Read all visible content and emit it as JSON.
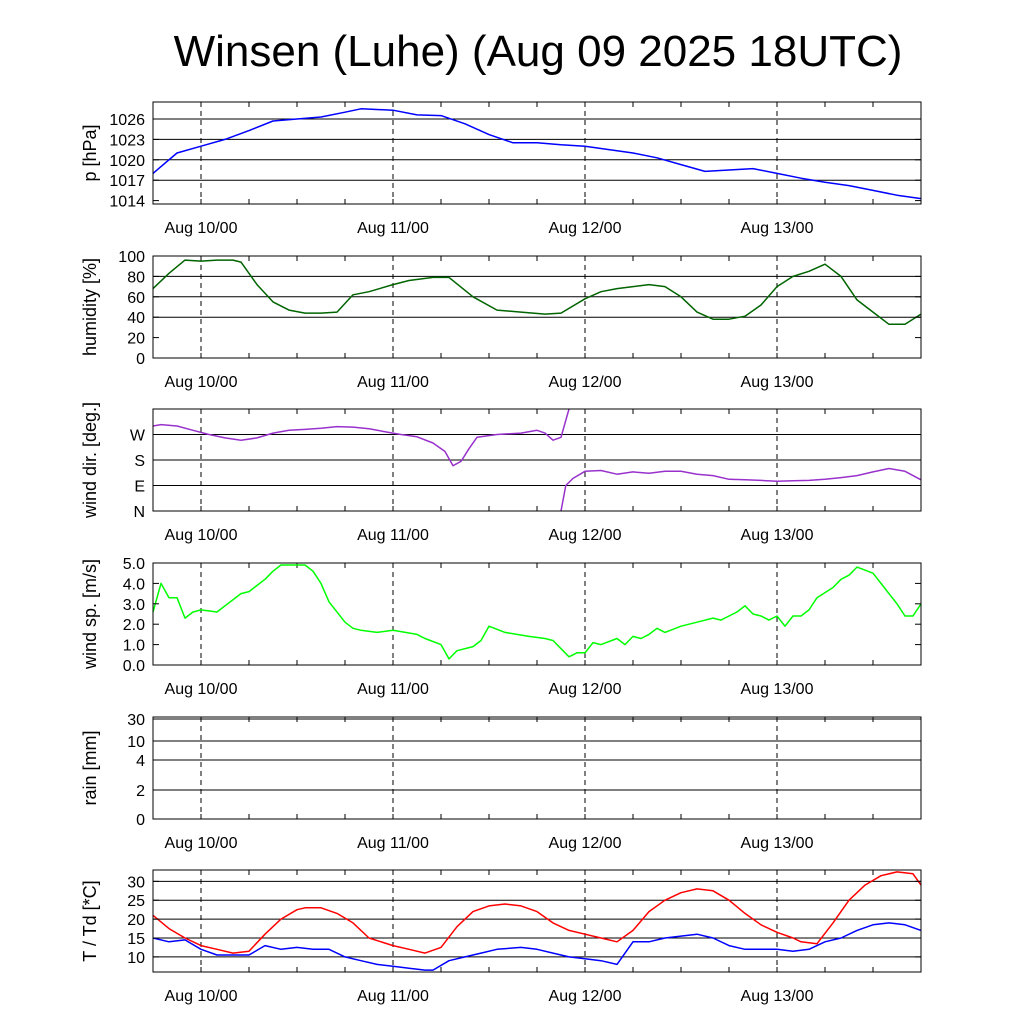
{
  "chart_data": {
    "type": "line",
    "title": "Winsen (Luhe) (Aug 09 2025 18UTC)",
    "x_ticks": [
      "Aug 10/00",
      "Aug 11/00",
      "Aug 12/00",
      "Aug 13/00"
    ],
    "x_tick_hours": [
      6,
      30,
      54,
      78
    ],
    "x_range_hours": [
      0,
      96
    ],
    "colors": {
      "pressure": "#0000ff",
      "humidity": "#006400",
      "wind_dir": "#9932cc",
      "wind_speed": "#00ff00",
      "rain": "#0000ff",
      "temperature": "#ff0000",
      "dewpoint": "#0000ff"
    },
    "panels": [
      {
        "id": "pressure",
        "ylabel": "p [hPa]",
        "ylim": [
          1013.5,
          1028.5
        ],
        "yticks": [
          1014,
          1017,
          1020,
          1023,
          1026
        ],
        "ytick_labels": [
          "1014",
          "1017",
          "1020",
          "1023",
          "1026"
        ],
        "grid": [
          1017,
          1020,
          1023,
          1026
        ],
        "series": [
          {
            "name": "pressure",
            "color_key": "pressure",
            "x": [
              0,
              1,
              3,
              6,
              9,
              12,
              15,
              18,
              21,
              24,
              26,
              30,
              33,
              36,
              39,
              42,
              45,
              48,
              51,
              54,
              57,
              60,
              63,
              66,
              69,
              72,
              75,
              78,
              81,
              84,
              87,
              90,
              93,
              96
            ],
            "y": [
              1018,
              1019,
              1021,
              1022,
              1023,
              1024.3,
              1025.7,
              1026,
              1026.3,
              1027,
              1027.5,
              1027.3,
              1026.6,
              1026.5,
              1025.3,
              1023.7,
              1022.5,
              1022.5,
              1022.2,
              1022,
              1021.5,
              1021,
              1020.3,
              1019.3,
              1018.3,
              1018.5,
              1018.7,
              1018,
              1017.3,
              1016.7,
              1016.2,
              1015.5,
              1014.8,
              1014.3
            ]
          }
        ]
      },
      {
        "id": "humidity",
        "ylabel": "humidity [%]",
        "ylim": [
          0,
          100
        ],
        "yticks": [
          0,
          20,
          40,
          60,
          80,
          100
        ],
        "ytick_labels": [
          "0",
          "20",
          "40",
          "60",
          "80",
          "100"
        ],
        "grid": [
          40,
          60,
          80
        ],
        "series": [
          {
            "name": "humidity",
            "color_key": "humidity",
            "x": [
              0,
              2,
              4,
              6,
              8,
              10,
              11,
              13,
              15,
              17,
              19,
              21,
              23,
              25,
              27,
              30,
              32,
              35,
              37,
              40,
              43,
              46,
              49,
              51,
              54,
              56,
              58,
              60,
              62,
              64,
              66,
              68,
              70,
              72,
              74,
              76,
              78,
              80,
              82,
              84,
              86,
              88,
              90,
              92,
              94,
              96
            ],
            "y": [
              68,
              83,
              96,
              95,
              96,
              96,
              94,
              72,
              55,
              47,
              44,
              44,
              45,
              62,
              65,
              72,
              76,
              79,
              79,
              60,
              47,
              45,
              43,
              44,
              58,
              65,
              68,
              70,
              72,
              70,
              60,
              45,
              38,
              38,
              41,
              52,
              70,
              80,
              85,
              92,
              80,
              57,
              45,
              33,
              33,
              43
            ]
          }
        ]
      },
      {
        "id": "wind_dir",
        "ylabel": "wind dir. [deg.]",
        "ylim": [
          0,
          360
        ],
        "yticks": [
          0,
          90,
          180,
          270
        ],
        "ytick_labels": [
          "N",
          "E",
          "S",
          "W"
        ],
        "grid": [
          90,
          180,
          270
        ],
        "series": [
          {
            "name": "wind_dir_a",
            "color_key": "wind_dir",
            "x": [
              0,
              1,
              3,
              5,
              7,
              9,
              11,
              13,
              15,
              17,
              19,
              21,
              23,
              25,
              27,
              29,
              31,
              33,
              35,
              36.5,
              37.5,
              38.5,
              39.5,
              40.5,
              43,
              46,
              48,
              49,
              50,
              51,
              52
            ],
            "y": [
              300,
              305,
              300,
              285,
              270,
              258,
              250,
              258,
              275,
              285,
              288,
              292,
              298,
              296,
              290,
              280,
              270,
              262,
              240,
              210,
              160,
              175,
              220,
              260,
              270,
              275,
              285,
              275,
              250,
              260,
              360
            ]
          },
          {
            "name": "wind_dir_b",
            "color_key": "wind_dir",
            "x": [
              51,
              51.6,
              52.5,
              54,
              56,
              58,
              60,
              62,
              64,
              66,
              68,
              70,
              72,
              74,
              76,
              78,
              80,
              82,
              84,
              86,
              88,
              90,
              92,
              94,
              96
            ],
            "y": [
              0,
              90,
              115,
              140,
              143,
              130,
              138,
              133,
              140,
              140,
              130,
              125,
              112,
              110,
              108,
              105,
              107,
              108,
              112,
              118,
              125,
              138,
              150,
              140,
              110
            ]
          }
        ]
      },
      {
        "id": "wind_speed",
        "ylabel": "wind sp. [m/s]",
        "ylim": [
          0,
          5
        ],
        "yticks": [
          0,
          1,
          2,
          3,
          4,
          5
        ],
        "ytick_labels": [
          "0.0",
          "1.0",
          "2.0",
          "3.0",
          "4.0",
          "5.0"
        ],
        "grid": [],
        "series": [
          {
            "name": "wind_speed",
            "color_key": "wind_speed",
            "x": [
              0,
              1,
              2,
              3,
              4,
              5,
              6,
              8,
              9,
              11,
              12,
              14,
              15,
              16,
              17,
              18,
              19,
              20,
              21,
              22,
              24,
              25,
              26,
              28,
              30,
              33,
              34,
              36,
              37,
              38,
              40,
              41,
              42,
              44,
              47,
              49,
              50,
              51,
              52,
              53,
              54,
              55,
              56,
              58,
              59,
              60,
              61,
              62,
              63,
              64,
              66,
              68,
              70,
              71,
              72,
              73,
              74,
              75,
              76,
              77,
              78,
              79,
              80,
              81,
              82,
              83,
              85,
              86,
              87,
              88,
              90,
              91,
              92,
              93,
              94,
              95,
              96
            ],
            "y": [
              2.6,
              4,
              3.3,
              3.3,
              2.3,
              2.6,
              2.7,
              2.6,
              2.9,
              3.5,
              3.6,
              4.2,
              4.6,
              4.9,
              4.9,
              4.9,
              4.9,
              4.6,
              4,
              3.1,
              2.1,
              1.8,
              1.7,
              1.6,
              1.7,
              1.5,
              1.3,
              1,
              0.3,
              0.7,
              0.9,
              1.2,
              1.9,
              1.6,
              1.4,
              1.3,
              1.2,
              0.8,
              0.4,
              0.6,
              0.6,
              1.1,
              1,
              1.3,
              1,
              1.4,
              1.3,
              1.5,
              1.8,
              1.6,
              1.9,
              2.1,
              2.3,
              2.2,
              2.4,
              2.6,
              2.9,
              2.5,
              2.4,
              2.2,
              2.4,
              1.9,
              2.4,
              2.4,
              2.7,
              3.3,
              3.8,
              4.2,
              4.4,
              4.8,
              4.5,
              4,
              3.5,
              3,
              2.4,
              2.4,
              3
            ]
          }
        ]
      },
      {
        "id": "rain",
        "ylabel": "rain [mm]",
        "yticks": [
          0,
          2,
          4,
          10,
          30
        ],
        "ytick_labels": [
          "0",
          "2",
          "4",
          "10",
          "30"
        ],
        "grid": [
          2,
          4,
          10,
          30
        ],
        "series": []
      },
      {
        "id": "temperature",
        "ylabel": "T / Td [*C]",
        "ylim": [
          6,
          33
        ],
        "yticks": [
          10,
          15,
          20,
          25,
          30
        ],
        "ytick_labels": [
          "10",
          "15",
          "20",
          "25",
          "30"
        ],
        "grid": [
          10,
          15,
          20,
          25,
          30
        ],
        "series": [
          {
            "name": "temperature",
            "color_key": "temperature",
            "x": [
              0,
              2,
              4,
              6,
              8,
              10,
              12,
              14,
              16,
              18,
              19,
              21,
              23,
              25,
              27,
              30,
              32,
              34,
              36,
              38,
              40,
              42,
              44,
              46,
              48,
              50,
              52,
              54,
              56,
              58,
              60,
              62,
              64,
              66,
              68,
              70,
              72,
              74,
              76,
              78,
              80,
              81,
              83,
              85,
              87,
              89,
              91,
              93,
              95,
              96
            ],
            "y": [
              21,
              17.5,
              15,
              13,
              12,
              11,
              11.5,
              16,
              20,
              22.5,
              23,
              23,
              21.5,
              19,
              15,
              13,
              12,
              11,
              12.5,
              18,
              22,
              23.5,
              24,
              23.5,
              22,
              19,
              17,
              16,
              15,
              14,
              17,
              22,
              25,
              27,
              28,
              27.5,
              25,
              21.5,
              18.5,
              16.5,
              15,
              14,
              13.5,
              19,
              25,
              29,
              31.5,
              32.5,
              32,
              29
            ]
          },
          {
            "name": "dewpoint",
            "color_key": "dewpoint",
            "x": [
              0,
              2,
              4,
              6,
              8,
              10,
              12,
              14,
              16,
              18,
              20,
              22,
              24,
              26,
              28,
              30,
              32,
              34,
              35,
              37,
              39,
              41,
              43,
              46,
              48,
              50,
              52,
              54,
              56,
              58,
              60,
              62,
              64,
              66,
              68,
              70,
              72,
              74,
              76,
              78,
              80,
              82,
              84,
              86,
              88,
              90,
              92,
              94,
              96
            ],
            "y": [
              15,
              14,
              14.5,
              12,
              10.5,
              10.5,
              10.5,
              13,
              12,
              12.5,
              12,
              12,
              10,
              9,
              8,
              7.5,
              7,
              6.5,
              6.5,
              9,
              10,
              11,
              12,
              12.5,
              12,
              11,
              10,
              9.5,
              9,
              8,
              14,
              14,
              15,
              15.5,
              16,
              15,
              13,
              12,
              12,
              12,
              11.5,
              12,
              14,
              15,
              17,
              18.5,
              19,
              18.5,
              17
            ]
          }
        ]
      }
    ]
  }
}
